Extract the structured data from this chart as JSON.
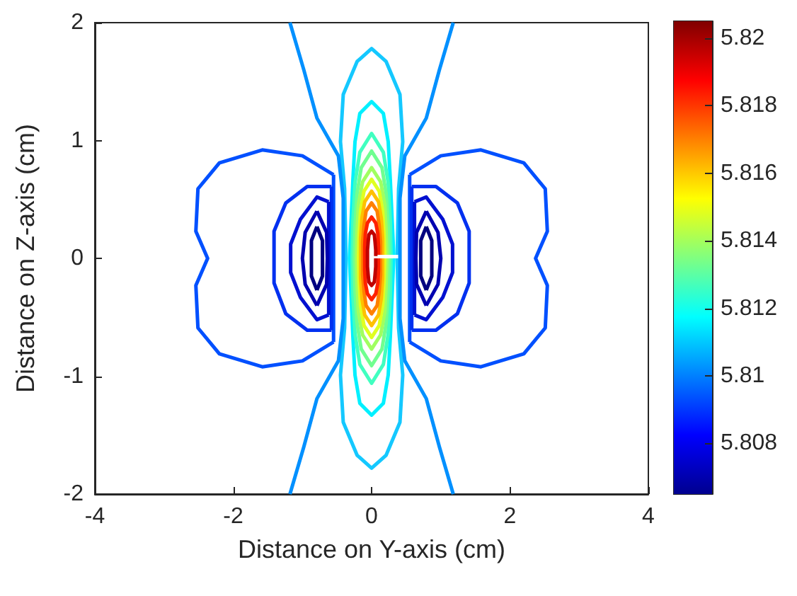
{
  "chart_data": {
    "type": "line",
    "xlabel": "Distance on Y-axis (cm)",
    "ylabel": "Distance on Z-axis (cm)",
    "xlim": [
      -4,
      4
    ],
    "xticks": [
      -4,
      -2,
      0,
      2,
      4
    ],
    "ylim": [
      -2,
      2
    ],
    "yticks": [
      -2,
      -1,
      0,
      1,
      2
    ],
    "clim": [
      5.8065,
      5.8205
    ],
    "cticks": [
      5.808,
      5.81,
      5.812,
      5.814,
      5.816,
      5.818,
      5.82
    ],
    "grid": false,
    "marker": "none",
    "line_style": "solid",
    "series": [
      {
        "color": "#14c8ff",
        "x": [
          0.37,
          0.39,
          0.45,
          0.41,
          0.21,
          0,
          -0.21,
          -0.41,
          -0.45,
          -0.39,
          -0.37,
          -0.39,
          -0.45,
          -0.41,
          -0.21,
          0,
          0.21,
          0.41,
          0.45,
          0.39,
          0.37
        ],
        "values": [
          0,
          -0.59,
          -0.99,
          -1.39,
          -1.67,
          -1.78,
          -1.67,
          -1.39,
          -0.99,
          -0.59,
          0,
          0.59,
          0.99,
          1.39,
          1.67,
          1.78,
          1.67,
          1.39,
          0.99,
          0.59,
          0.03
        ]
      },
      {
        "color": "#00f0ff",
        "x": [
          0.32,
          0.27,
          0.24,
          0.17,
          0,
          -0.17,
          -0.24,
          -0.27,
          -0.32,
          -0.27,
          -0.24,
          -0.17,
          0,
          0.17,
          0.24,
          0.27,
          0.32
        ],
        "values": [
          0,
          -0.67,
          -0.99,
          -1.23,
          -1.33,
          -1.23,
          -0.99,
          -0.67,
          0,
          0.67,
          0.99,
          1.23,
          1.33,
          1.23,
          0.99,
          0.67,
          0.03
        ]
      },
      {
        "color": "#40ffc0",
        "x": [
          0.28,
          0.27,
          0.24,
          0.17,
          0,
          -0.17,
          -0.24,
          -0.27,
          -0.28,
          -0.27,
          -0.24,
          -0.17,
          0,
          0.17,
          0.24,
          0.27,
          0.28
        ],
        "values": [
          0,
          -0.32,
          -0.64,
          -0.9,
          -1.06,
          -0.9,
          -0.64,
          -0.32,
          0,
          0.32,
          0.64,
          0.9,
          1.06,
          0.9,
          0.64,
          0.32,
          0.03
        ]
      },
      {
        "color": "#70ff90",
        "x": [
          0.25,
          0.24,
          0.21,
          0.15,
          0,
          -0.15,
          -0.21,
          -0.24,
          -0.25,
          -0.24,
          -0.21,
          -0.15,
          0,
          0.15,
          0.21,
          0.24,
          0.25
        ],
        "values": [
          0,
          -0.27,
          -0.55,
          -0.77,
          -0.91,
          -0.77,
          -0.55,
          -0.27,
          0,
          0.27,
          0.55,
          0.77,
          0.91,
          0.77,
          0.55,
          0.27,
          0.03
        ]
      },
      {
        "color": "#a0ff60",
        "x": [
          0.22,
          0.21,
          0.19,
          0.13,
          0,
          -0.13,
          -0.19,
          -0.21,
          -0.22,
          -0.21,
          -0.19,
          -0.13,
          0,
          0.13,
          0.19,
          0.21,
          0.22
        ],
        "values": [
          0,
          -0.23,
          -0.46,
          -0.65,
          -0.77,
          -0.65,
          -0.46,
          -0.23,
          0,
          0.23,
          0.46,
          0.65,
          0.77,
          0.65,
          0.46,
          0.23,
          0.03
        ]
      },
      {
        "color": "#e0ff20",
        "x": [
          0.19,
          0.18,
          0.16,
          0.11,
          0,
          -0.11,
          -0.16,
          -0.18,
          -0.19,
          -0.18,
          -0.16,
          -0.11,
          0,
          0.11,
          0.16,
          0.18,
          0.19
        ],
        "values": [
          0,
          -0.2,
          -0.4,
          -0.57,
          -0.67,
          -0.57,
          -0.4,
          -0.2,
          0,
          0.2,
          0.4,
          0.57,
          0.67,
          0.57,
          0.4,
          0.2,
          0.03
        ]
      },
      {
        "color": "#ffc000",
        "x": [
          0.16,
          0.16,
          0.14,
          0.1,
          0,
          -0.1,
          -0.14,
          -0.16,
          -0.16,
          -0.16,
          -0.14,
          -0.1,
          0,
          0.1,
          0.14,
          0.16,
          0.16
        ],
        "values": [
          0,
          -0.17,
          -0.34,
          -0.48,
          -0.57,
          -0.48,
          -0.34,
          -0.17,
          0,
          0.17,
          0.34,
          0.48,
          0.57,
          0.48,
          0.34,
          0.17,
          0.03
        ]
      },
      {
        "color": "#ff8000",
        "x": [
          0.13,
          0.13,
          0.11,
          0.08,
          0,
          -0.08,
          -0.11,
          -0.13,
          -0.13,
          -0.13,
          -0.11,
          -0.08,
          0,
          0.08,
          0.11,
          0.13,
          0.13
        ],
        "values": [
          0,
          -0.14,
          -0.28,
          -0.4,
          -0.47,
          -0.4,
          -0.28,
          -0.14,
          0,
          0.14,
          0.28,
          0.4,
          0.47,
          0.4,
          0.28,
          0.14,
          0.03
        ]
      },
      {
        "color": "#ff2000",
        "x": [
          0.1,
          0.1,
          0.09,
          0.06,
          0,
          -0.06,
          -0.09,
          -0.1,
          -0.1,
          -0.1,
          -0.09,
          -0.06,
          0,
          0.06,
          0.09,
          0.1,
          0.1
        ],
        "values": [
          0,
          -0.1,
          -0.21,
          -0.3,
          -0.35,
          -0.3,
          -0.21,
          -0.1,
          0,
          0.1,
          0.21,
          0.3,
          0.35,
          0.3,
          0.21,
          0.1,
          0.03
        ]
      },
      {
        "color": "#c00000",
        "x": [
          0.06,
          0.06,
          0.05,
          0.04,
          0,
          -0.04,
          -0.05,
          -0.06,
          -0.06,
          -0.06,
          -0.05,
          -0.04,
          0,
          0.04,
          0.05,
          0.06,
          0.06
        ],
        "values": [
          0,
          -0.07,
          -0.14,
          -0.2,
          -0.23,
          -0.2,
          -0.14,
          -0.07,
          0,
          0.07,
          0.14,
          0.2,
          0.23,
          0.2,
          0.14,
          0.07,
          0.02
        ]
      },
      {
        "color": "#0090ff",
        "x": [
          1.18,
          0.98,
          0.79,
          0.48,
          0.41,
          0.41,
          0.41,
          0.48,
          0.79,
          0.98,
          1.18
        ],
        "values": [
          2,
          1.6,
          1.19,
          0.87,
          0.51,
          0,
          -0.51,
          -0.87,
          -1.19,
          -1.6,
          -2
        ]
      },
      {
        "color": "#0090ff",
        "x": [
          -1.18,
          -0.98,
          -0.79,
          -0.48,
          -0.41,
          -0.41,
          -0.41,
          -0.48,
          -0.79,
          -0.98,
          -1.18
        ],
        "values": [
          2,
          1.6,
          1.19,
          0.87,
          0.51,
          0,
          -0.51,
          -0.87,
          -1.19,
          -1.6,
          -2
        ]
      },
      {
        "color": "#0050ff",
        "x": [
          0.55,
          1.0,
          1.58,
          2.2,
          2.51,
          2.54,
          2.37,
          2.54,
          2.51,
          2.2,
          1.58,
          1.0,
          0.55
        ],
        "values": [
          0.71,
          0.87,
          0.92,
          0.81,
          0.59,
          0.23,
          0,
          -0.23,
          -0.59,
          -0.81,
          -0.92,
          -0.87,
          -0.71
        ]
      },
      {
        "color": "#0050ff",
        "x": [
          0.55,
          0.55
        ],
        "values": [
          -0.71,
          0.71
        ]
      },
      {
        "color": "#0050ff",
        "x": [
          -0.55,
          -1.0,
          -1.58,
          -2.2,
          -2.51,
          -2.54,
          -2.37,
          -2.54,
          -2.51,
          -2.2,
          -1.58,
          -1.0,
          -0.55
        ],
        "values": [
          0.71,
          0.87,
          0.92,
          0.81,
          0.59,
          0.23,
          0,
          -0.23,
          -0.59,
          -0.81,
          -0.92,
          -0.87,
          -0.71
        ]
      },
      {
        "color": "#0050ff",
        "x": [
          -0.55,
          -0.55
        ],
        "values": [
          -0.71,
          0.71
        ]
      },
      {
        "color": "#0030f0",
        "x": [
          0.58,
          0.93,
          1.24,
          1.41,
          1.41,
          1.24,
          0.93,
          0.58
        ],
        "values": [
          0.61,
          0.61,
          0.47,
          0.23,
          -0.21,
          -0.47,
          -0.61,
          -0.61
        ]
      },
      {
        "color": "#0030f0",
        "x": [
          0.58,
          0.58
        ],
        "values": [
          -0.61,
          0.61
        ]
      },
      {
        "color": "#0030f0",
        "x": [
          -0.58,
          -0.93,
          -1.24,
          -1.41,
          -1.41,
          -1.24,
          -0.93,
          -0.58
        ],
        "values": [
          0.61,
          0.61,
          0.47,
          0.23,
          -0.21,
          -0.47,
          -0.61,
          -0.61
        ]
      },
      {
        "color": "#0030f0",
        "x": [
          -0.58,
          -0.58
        ],
        "values": [
          -0.61,
          0.61
        ]
      },
      {
        "color": "#0010d0",
        "x": [
          0.62,
          0.79,
          1.03,
          1.17,
          1.17,
          1.03,
          0.79,
          0.62
        ],
        "values": [
          0.48,
          0.52,
          0.33,
          0.12,
          -0.12,
          -0.33,
          -0.52,
          -0.48
        ]
      },
      {
        "color": "#0010d0",
        "x": [
          0.62,
          0.62
        ],
        "values": [
          -0.48,
          0.48
        ]
      },
      {
        "color": "#0010d0",
        "x": [
          -0.62,
          -0.79,
          -1.03,
          -1.17,
          -1.17,
          -1.03,
          -0.79,
          -0.62
        ],
        "values": [
          0.48,
          0.52,
          0.33,
          0.12,
          -0.12,
          -0.33,
          -0.52,
          -0.48
        ]
      },
      {
        "color": "#0010d0",
        "x": [
          -0.62,
          -0.62
        ],
        "values": [
          -0.48,
          0.48
        ]
      },
      {
        "color": "#0000b0",
        "x": [
          0.79,
          0.96,
          1.0,
          0.96,
          0.79
        ],
        "values": [
          0.4,
          0.22,
          0,
          -0.22,
          -0.4
        ]
      },
      {
        "color": "#0000b0",
        "x": [
          0.79,
          0.65,
          0.64,
          0.65,
          0.79
        ],
        "values": [
          -0.4,
          -0.22,
          0,
          0.22,
          0.4
        ]
      },
      {
        "color": "#0000b0",
        "x": [
          -0.79,
          -0.96,
          -1.0,
          -0.96,
          -0.79
        ],
        "values": [
          0.4,
          0.22,
          0,
          -0.22,
          -0.4
        ]
      },
      {
        "color": "#0000b0",
        "x": [
          -0.79,
          -0.65,
          -0.64,
          -0.65,
          -0.79
        ],
        "values": [
          -0.4,
          -0.22,
          0,
          0.22,
          0.4
        ]
      },
      {
        "color": "#000080",
        "x": [
          0.79,
          0.87,
          0.87,
          0.79
        ],
        "values": [
          0.27,
          0.15,
          -0.15,
          -0.27
        ]
      },
      {
        "color": "#000080",
        "x": [
          0.79,
          0.71,
          0.71,
          0.79
        ],
        "values": [
          -0.27,
          -0.15,
          0.15,
          0.27
        ]
      },
      {
        "color": "#000080",
        "x": [
          -0.79,
          -0.87,
          -0.87,
          -0.79
        ],
        "values": [
          0.27,
          0.15,
          -0.15,
          -0.27
        ]
      },
      {
        "color": "#000080",
        "x": [
          -0.79,
          -0.71,
          -0.71,
          -0.79
        ],
        "values": [
          -0.27,
          -0.15,
          0.15,
          0.27
        ]
      }
    ]
  }
}
